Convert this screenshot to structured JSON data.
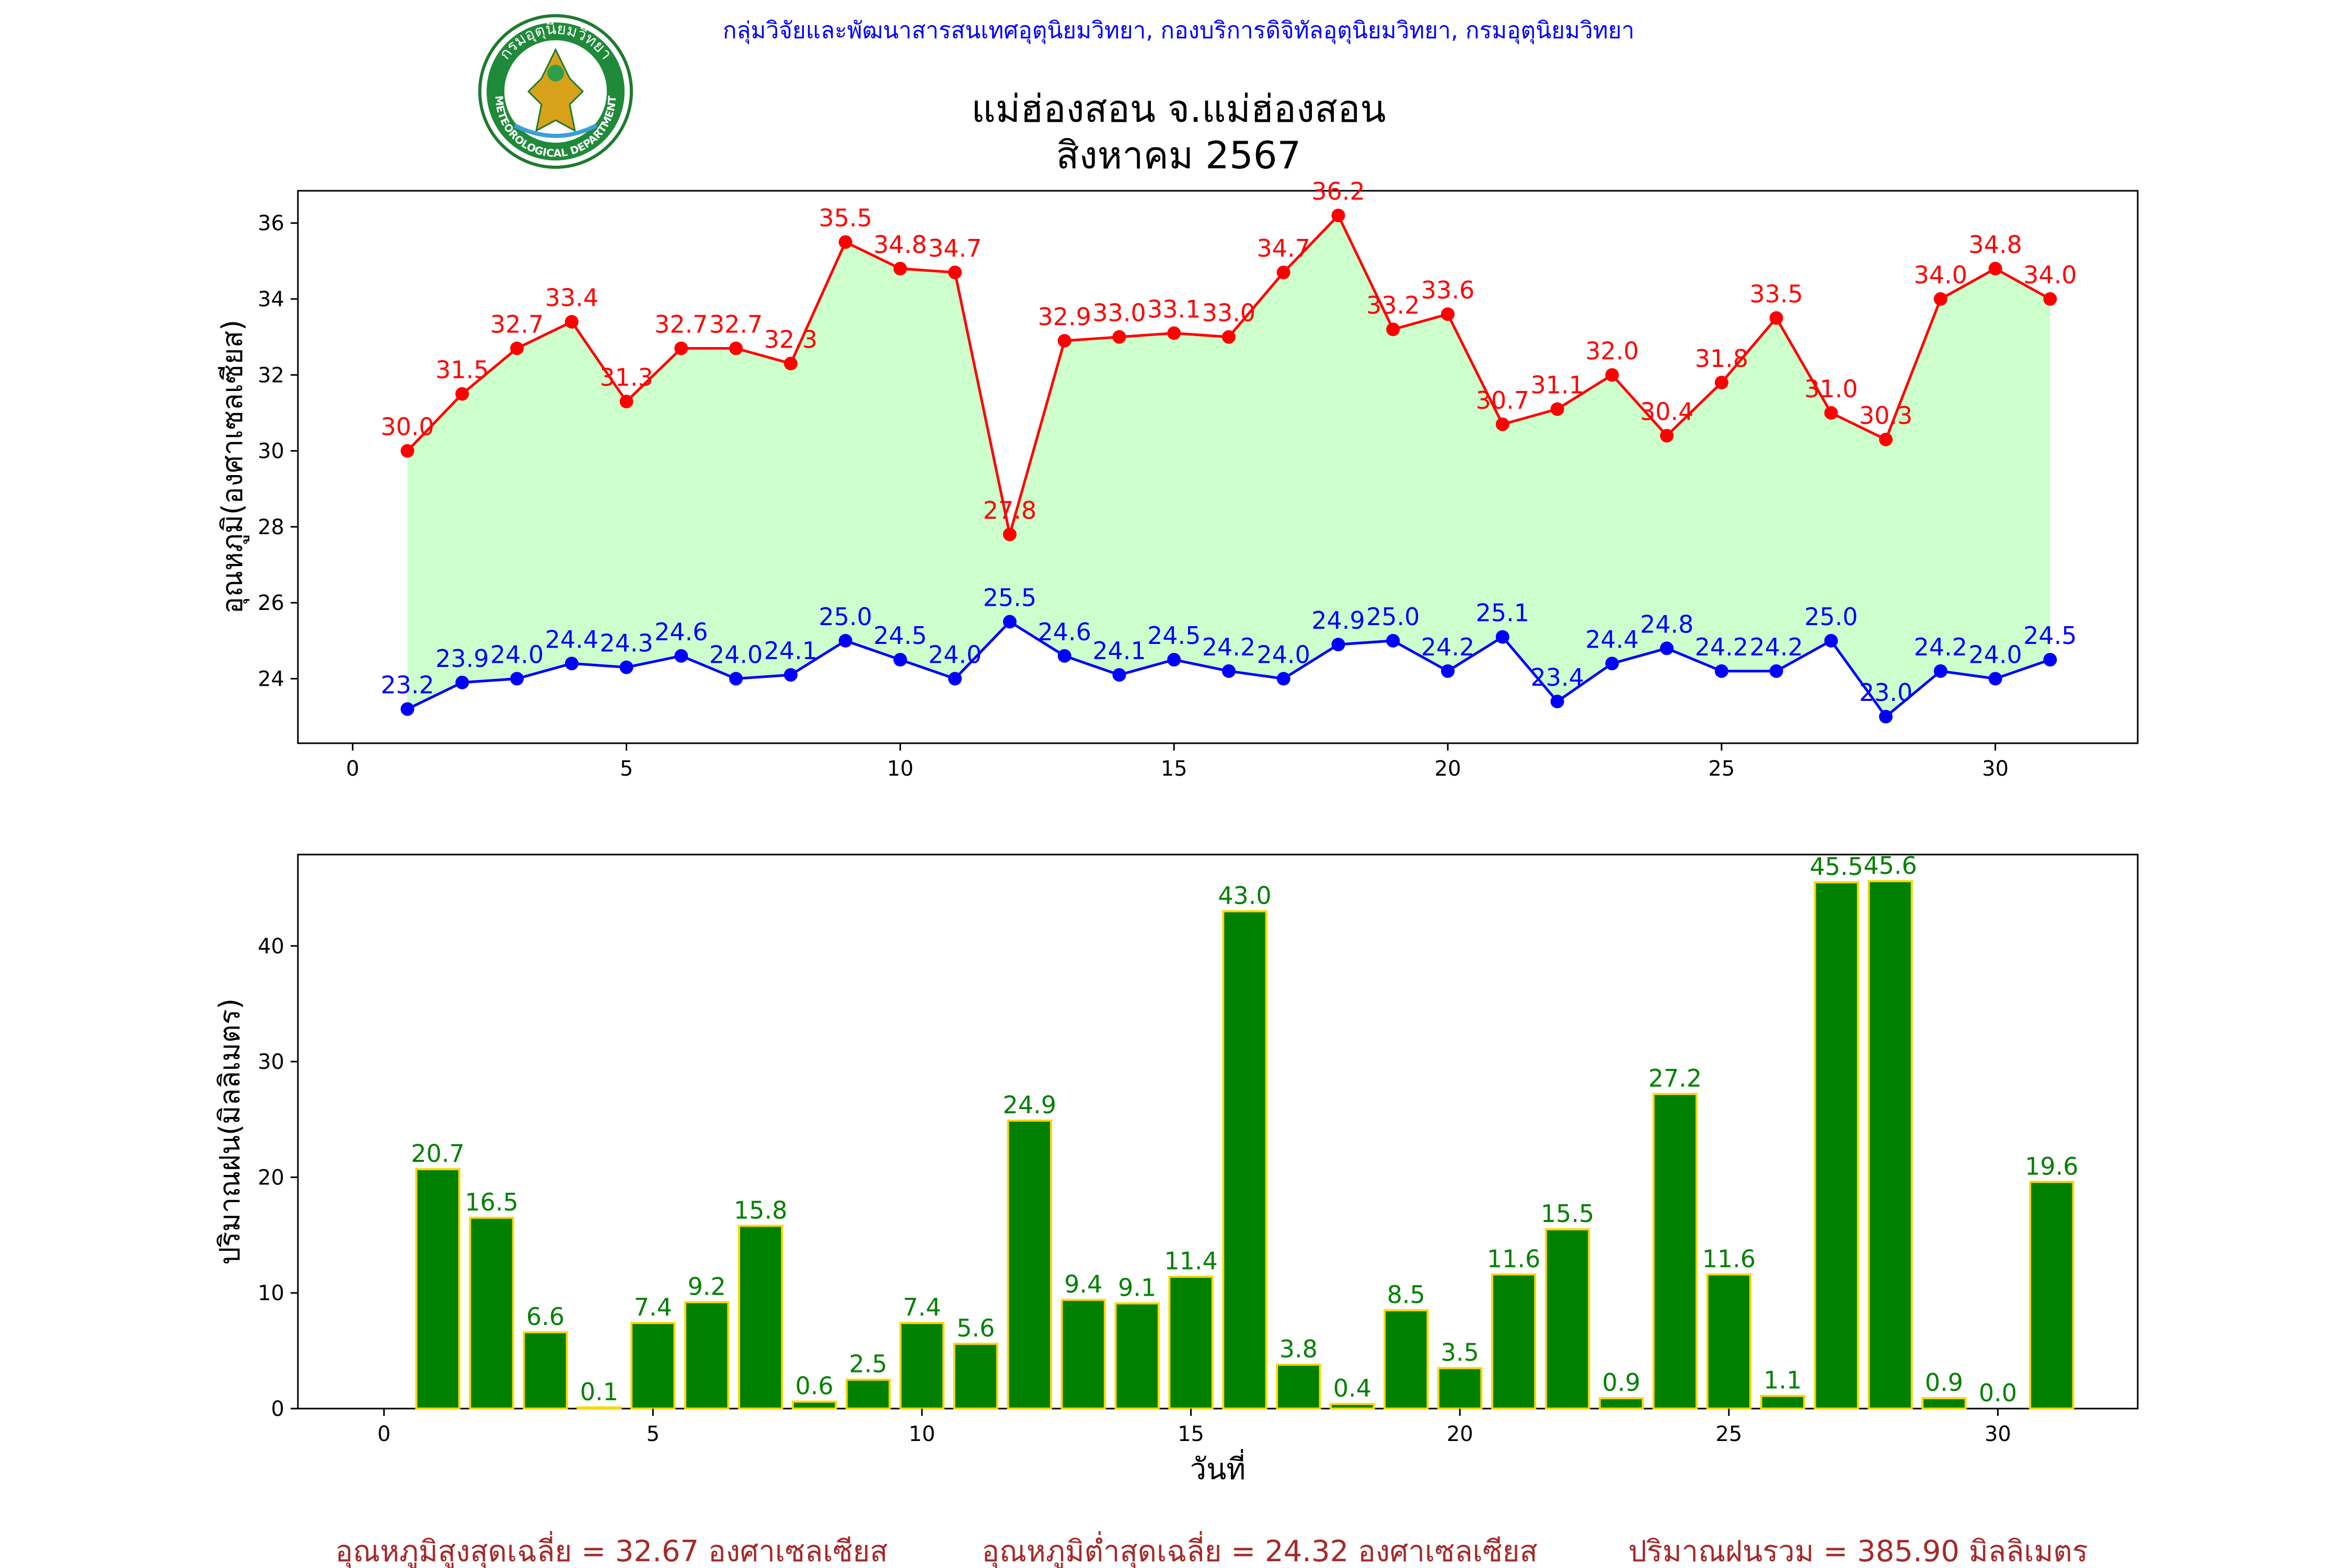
{
  "header": {
    "org_line": "กลุ่มวิจัยและพัฒนาสารสนเทศอุตุนิยมวิทยา, กองบริการดิจิทัลอุตุนิยมวิทยา, กรมอุตุนิยมวิทยา",
    "title_line1": "แม่ฮ่องสอน จ.แม่ฮ่องสอน",
    "title_line2": "สิงหาคม 2567",
    "logo_text_top": "กรมอุตุนิยมวิทยา",
    "logo_text_bottom": "METEOROLOGICAL DEPARTMENT"
  },
  "footer": {
    "avg_max": "อุณหภูมิสูงสุดเฉลี่ย = 32.67 องศาเซลเซียส",
    "avg_min": "อุณหภูมิต่ำสุดเฉลี่ย = 24.32 องศาเซลเซียส",
    "total_rain": "ปริมาณฝนรวม = 385.90 มิลลิเมตร"
  },
  "colors": {
    "max_line": "#ff0000",
    "min_line": "#0000ff",
    "fill": "#ccffcc",
    "bar_fill": "#008000",
    "bar_edge": "#ffd700",
    "bar_label": "#008000",
    "header_text": "#0000ff",
    "footer_text": "#a52a2a"
  },
  "chart_data": [
    {
      "type": "line",
      "ylabel": "อุณหภูมิ(องศาเซลเซียส)",
      "xlim": [
        -1,
        32.6
      ],
      "ylim": [
        22.3,
        36.85
      ],
      "xticks": [
        0,
        5,
        10,
        15,
        20,
        25,
        30
      ],
      "yticks": [
        24,
        26,
        28,
        30,
        32,
        34,
        36
      ],
      "x": [
        1,
        2,
        3,
        4,
        5,
        6,
        7,
        8,
        9,
        10,
        11,
        12,
        13,
        14,
        15,
        16,
        17,
        18,
        19,
        20,
        21,
        22,
        23,
        24,
        25,
        26,
        27,
        28,
        29,
        30,
        31
      ],
      "series": [
        {
          "key": "max",
          "values": [
            30.0,
            31.5,
            32.7,
            33.4,
            31.3,
            32.7,
            32.7,
            32.3,
            35.5,
            34.8,
            34.7,
            27.8,
            32.9,
            33.0,
            33.1,
            33.0,
            34.7,
            36.2,
            33.2,
            33.6,
            30.7,
            31.1,
            32.0,
            30.4,
            31.8,
            33.5,
            31.0,
            30.3,
            34.0,
            34.8,
            34.0
          ]
        },
        {
          "key": "min",
          "values": [
            23.2,
            23.9,
            24.0,
            24.4,
            24.3,
            24.6,
            24.0,
            24.1,
            25.0,
            24.5,
            24.0,
            25.5,
            24.6,
            24.1,
            24.5,
            24.2,
            24.0,
            24.9,
            25.0,
            24.2,
            25.1,
            23.4,
            24.4,
            24.8,
            24.2,
            24.2,
            25.0,
            23.0,
            24.2,
            24.0,
            24.5
          ]
        }
      ]
    },
    {
      "type": "bar",
      "xlabel": "วันที่",
      "ylabel": "ปริมาณฝน(มิลลิเมตร)",
      "xlim": [
        -1.6,
        32.6
      ],
      "ylim": [
        0,
        47.9
      ],
      "xticks": [
        0,
        5,
        10,
        15,
        20,
        25,
        30
      ],
      "yticks": [
        0,
        10,
        20,
        30,
        40
      ],
      "x": [
        1,
        2,
        3,
        4,
        5,
        6,
        7,
        8,
        9,
        10,
        11,
        12,
        13,
        14,
        15,
        16,
        17,
        18,
        19,
        20,
        21,
        22,
        23,
        24,
        25,
        26,
        27,
        28,
        29,
        30,
        31
      ],
      "values": [
        20.7,
        16.5,
        6.6,
        0.1,
        7.4,
        9.2,
        15.8,
        0.6,
        2.5,
        7.4,
        5.6,
        24.9,
        9.4,
        9.1,
        11.4,
        43.0,
        3.8,
        0.4,
        8.5,
        3.5,
        11.6,
        15.5,
        0.9,
        27.2,
        11.6,
        1.1,
        45.5,
        45.6,
        0.9,
        0.0,
        19.6
      ]
    }
  ]
}
